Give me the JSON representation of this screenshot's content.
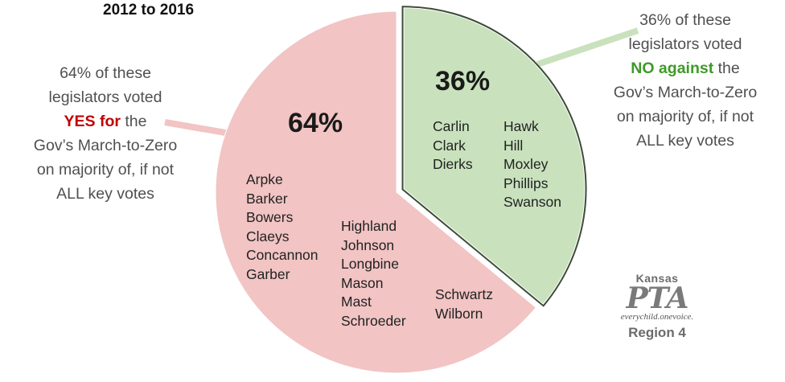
{
  "title": "2012 to 2016",
  "callouts": {
    "left": {
      "line1": "64% of these",
      "line2": "legislators voted",
      "emph": "YES for",
      "emph_after": " the",
      "line4": "Gov’s March-to-Zero",
      "line5": "on majority of, if not",
      "line6": "ALL key votes"
    },
    "right": {
      "line1": "36% of these",
      "line2": "legislators voted",
      "emph": "NO against",
      "emph_after": " the",
      "line4": "Gov’s March-to-Zero",
      "line5": "on majority of, if not",
      "line6": "ALL key votes"
    }
  },
  "colors": {
    "yes_slice": "#f2c4c4",
    "no_slice": "#c9e2bd",
    "yes_text": "#c00000",
    "no_text": "#3e9a2a",
    "leader_left": "#f2c4c4",
    "leader_right": "#c9e2bd"
  },
  "chart_data": {
    "type": "pie",
    "title": "2012 to 2016",
    "slices": [
      {
        "label": "64%",
        "value": 64
      },
      {
        "label": "36%",
        "value": 36
      }
    ],
    "slice_members": {
      "64%": [
        "Arpke",
        "Barker",
        "Bowers",
        "Claeys",
        "Concannon",
        "Garber",
        "Highland",
        "Johnson",
        "Longbine",
        "Mason",
        "Mast",
        "Schroeder",
        "Schwartz",
        "Wilborn"
      ],
      "36%": [
        "Carlin",
        "Clark",
        "Dierks",
        "Hawk",
        "Hill",
        "Moxley",
        "Phillips",
        "Swanson"
      ]
    },
    "exploded_slice": "36%"
  },
  "name_columns": {
    "yes_col1": [
      "Arpke",
      "Barker",
      "Bowers",
      "Claeys",
      "Concannon",
      "Garber"
    ],
    "yes_col2": [
      "Highland",
      "Johnson",
      "Longbine",
      "Mason",
      "Mast",
      "Schroeder"
    ],
    "yes_col3": [
      "Schwartz",
      "Wilborn"
    ],
    "no_col1": [
      "Carlin",
      "Clark",
      "Dierks"
    ],
    "no_col2": [
      "Hawk",
      "Hill",
      "Moxley",
      "Phillips",
      "Swanson"
    ]
  },
  "logo": {
    "org_top": "Kansas",
    "org_name": "PTA",
    "motto": "everychild.onevoice.",
    "region": "Region 4"
  }
}
